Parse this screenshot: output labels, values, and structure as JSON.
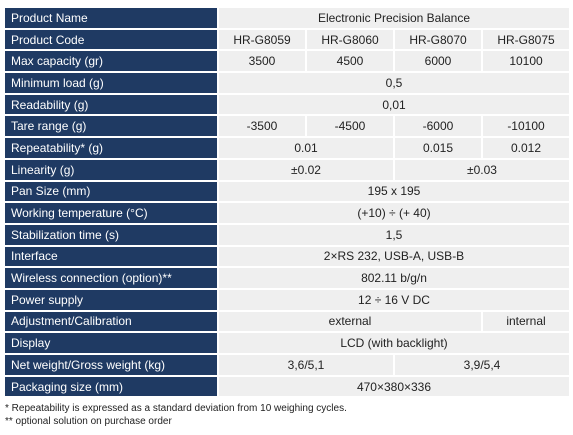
{
  "table": {
    "rows": [
      {
        "label": "Product Name",
        "values": [
          "Electronic Precision Balance"
        ]
      },
      {
        "label": "Product Code",
        "values": [
          "HR-G8059",
          "HR-G8060",
          "HR-G8070",
          "HR-G8075"
        ]
      },
      {
        "label": "Max capacity (gr)",
        "values": [
          "3500",
          "4500",
          "6000",
          "10100"
        ]
      },
      {
        "label": "Minimum load (g)",
        "values": [
          "0,5"
        ]
      },
      {
        "label": "Readability (g)",
        "values": [
          "0,01"
        ]
      },
      {
        "label": "Tare range (g)",
        "values": [
          "-3500",
          "-4500",
          "-6000",
          "-10100"
        ]
      },
      {
        "label": "Repeatability* (g)",
        "values": [
          "0.01",
          "0.015",
          "0.012"
        ]
      },
      {
        "label": "Linearity (g)",
        "values": [
          "±0.02",
          "±0.03"
        ]
      },
      {
        "label": "Pan Size (mm)",
        "values": [
          "195 x 195"
        ]
      },
      {
        "label": "Working temperature (°C)",
        "values": [
          "(+10) ÷ (+ 40)"
        ]
      },
      {
        "label": "Stabilization time (s)",
        "values": [
          "1,5"
        ]
      },
      {
        "label": "Interface",
        "values": [
          "2×RS 232, USB-A, USB-B"
        ]
      },
      {
        "label": "Wireless connection (option)**",
        "values": [
          "802.11 b/g/n"
        ]
      },
      {
        "label": "Power supply",
        "values": [
          "12 ÷ 16 V DC"
        ]
      },
      {
        "label": "Adjustment/Calibration",
        "values": [
          "external",
          "internal"
        ]
      },
      {
        "label": "Display",
        "values": [
          "LCD (with backlight)"
        ]
      },
      {
        "label": "Net weight/Gross weight (kg)",
        "values": [
          "3,6/5,1",
          "3,9/5,4"
        ]
      },
      {
        "label": "Packaging size (mm)",
        "values": [
          "470×380×336"
        ]
      }
    ]
  },
  "footnotes": [
    "* Repeatability is expressed as a standard deviation from 10 weighing cycles.",
    "** optional solution on purchase order"
  ]
}
